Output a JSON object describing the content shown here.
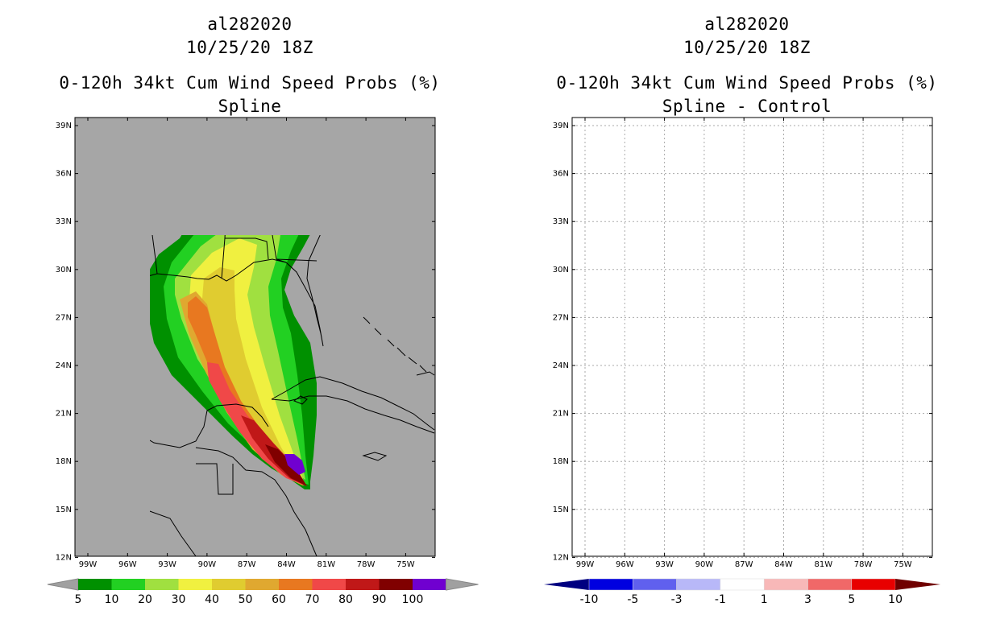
{
  "left": {
    "storm": "al282020",
    "time": "10/25/20 18Z",
    "product": "0-120h 34kt Cum Wind Speed Probs (%)",
    "subtitle": "Spline",
    "colorbar": {
      "labels": [
        "5",
        "10",
        "20",
        "30",
        "40",
        "50",
        "60",
        "70",
        "80",
        "90",
        "100"
      ],
      "colors": [
        "#009000",
        "#22d022",
        "#a0e040",
        "#f0f040",
        "#e0cc30",
        "#e0a830",
        "#e87820",
        "#f04848",
        "#c01818",
        "#800000",
        "#7000d0"
      ],
      "end_color": "#a0a0a0"
    }
  },
  "right": {
    "storm": "al282020",
    "time": "10/25/20 18Z",
    "product": "0-120h 34kt Cum Wind Speed Probs (%)",
    "subtitle": "Spline - Control",
    "colorbar": {
      "labels": [
        "-10",
        "-5",
        "-3",
        "-1",
        "1",
        "3",
        "5",
        "10"
      ],
      "colors": [
        "#0000e0",
        "#6060ee",
        "#b8b8f8",
        "#ffffff",
        "#f8b8b8",
        "#f06868",
        "#e80000"
      ],
      "end_left": "#000080",
      "end_right": "#700000"
    }
  },
  "axes": {
    "lat_labels": [
      "39N",
      "36N",
      "33N",
      "30N",
      "27N",
      "24N",
      "21N",
      "18N",
      "15N",
      "12N"
    ],
    "lon_labels": [
      "99W",
      "96W",
      "93W",
      "90W",
      "87W",
      "84W",
      "81W",
      "78W",
      "75W"
    ]
  },
  "colors": {
    "land_bg": "#a6a6a6",
    "ocean_bg": "#ffffff",
    "grid": "#aaaaaa"
  }
}
